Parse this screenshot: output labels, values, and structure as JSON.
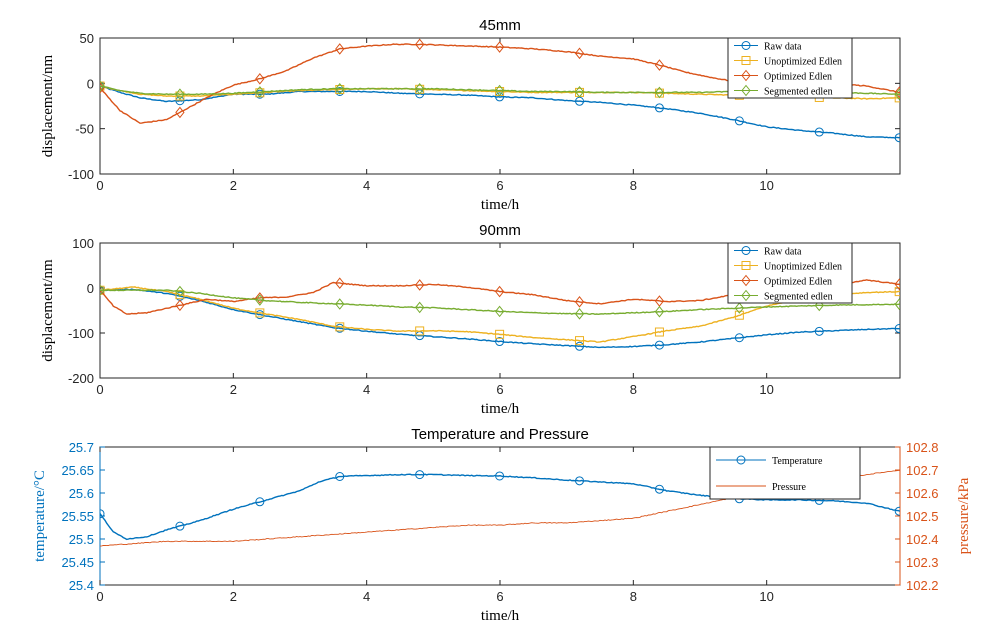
{
  "chart_data": [
    {
      "type": "line",
      "title": "45mm",
      "xlabel": "time/h",
      "ylabel": "displacement/nm",
      "xlim": [
        0,
        12
      ],
      "ylim": [
        -100,
        50
      ],
      "xticks": [
        0,
        2,
        4,
        6,
        8,
        10
      ],
      "yticks": [
        -100,
        -50,
        0,
        50
      ],
      "grid": false,
      "legend_position": "top-right",
      "series": [
        {
          "name": "Raw data",
          "color": "#0072BD",
          "marker": "circle",
          "x": [
            0,
            0.3,
            0.6,
            1,
            1.5,
            2,
            2.5,
            3,
            3.5,
            4,
            4.5,
            5,
            5.5,
            6,
            6.5,
            7,
            7.5,
            8,
            8.5,
            9,
            9.5,
            10,
            10.5,
            11,
            11.5,
            12
          ],
          "y": [
            -3,
            -10,
            -16,
            -20,
            -18,
            -12,
            -12,
            -9,
            -9,
            -9,
            -11,
            -12,
            -13,
            -15,
            -16,
            -19,
            -21,
            -24,
            -28,
            -33,
            -40,
            -48,
            -52,
            -55,
            -59,
            -60
          ]
        },
        {
          "name": "Unoptimized Edlen",
          "color": "#EDB120",
          "marker": "square",
          "x": [
            0,
            0.3,
            0.6,
            1,
            1.5,
            2,
            2.5,
            3,
            3.5,
            4,
            4.5,
            5,
            5.5,
            6,
            6.5,
            7,
            7.5,
            8,
            8.5,
            9,
            9.5,
            10,
            10.5,
            11,
            11.5,
            12
          ],
          "y": [
            -3,
            -8,
            -12,
            -14,
            -14,
            -12,
            -10,
            -8,
            -7,
            -6,
            -6,
            -7,
            -8,
            -9,
            -10,
            -10,
            -10,
            -10,
            -11,
            -12,
            -13,
            -14,
            -15,
            -16,
            -17,
            -16
          ]
        },
        {
          "name": "Optimized Edlen",
          "color": "#D95319",
          "marker": "diamond",
          "x": [
            0,
            0.3,
            0.6,
            1,
            1.3,
            1.7,
            2,
            2.4,
            2.8,
            3.2,
            3.6,
            4,
            4.4,
            4.8,
            5.2,
            5.6,
            6,
            6.5,
            7,
            7.5,
            8,
            8.4,
            8.8,
            9.2,
            9.6,
            10,
            10.5,
            11,
            11.5,
            12
          ],
          "y": [
            -5,
            -30,
            -44,
            -40,
            -28,
            -12,
            -2,
            5,
            14,
            28,
            38,
            41,
            43,
            43,
            42,
            41,
            40,
            38,
            35,
            30,
            27,
            20,
            12,
            6,
            1,
            2,
            1,
            0,
            -3,
            -10
          ]
        },
        {
          "name": "Segmented edlen",
          "color": "#77AC30",
          "marker": "diamond",
          "x": [
            0,
            0.3,
            0.6,
            1,
            1.5,
            2,
            2.5,
            3,
            3.5,
            4,
            4.5,
            5,
            5.5,
            6,
            6.5,
            7,
            7.5,
            8,
            8.5,
            9,
            9.5,
            10,
            10.5,
            11,
            11.5,
            12
          ],
          "y": [
            -3,
            -8,
            -11,
            -12,
            -12,
            -11,
            -9,
            -7,
            -6,
            -6,
            -6,
            -6,
            -7,
            -8,
            -9,
            -9,
            -10,
            -10,
            -10,
            -10,
            -9,
            -9,
            -10,
            -10,
            -11,
            -12
          ]
        }
      ]
    },
    {
      "type": "line",
      "title": "90mm",
      "xlabel": "time/h",
      "ylabel": "displacement/nm",
      "xlim": [
        0,
        12
      ],
      "ylim": [
        -200,
        100
      ],
      "xticks": [
        0,
        2,
        4,
        6,
        8,
        10
      ],
      "yticks": [
        -200,
        -100,
        0,
        100
      ],
      "grid": false,
      "legend_position": "top-right",
      "series": [
        {
          "name": "Raw data",
          "color": "#0072BD",
          "marker": "circle",
          "x": [
            0,
            0.5,
            1,
            1.5,
            2,
            2.5,
            3,
            3.5,
            4,
            4.5,
            5,
            5.5,
            6,
            6.5,
            7,
            7.5,
            8,
            8.5,
            9,
            9.5,
            10,
            10.5,
            11,
            11.5,
            12
          ],
          "y": [
            -5,
            -3,
            -12,
            -28,
            -48,
            -62,
            -75,
            -88,
            -96,
            -103,
            -108,
            -113,
            -119,
            -124,
            -128,
            -132,
            -130,
            -126,
            -120,
            -112,
            -104,
            -98,
            -95,
            -92,
            -90
          ]
        },
        {
          "name": "Unoptimized Edlen",
          "color": "#EDB120",
          "marker": "square",
          "x": [
            0,
            0.5,
            1,
            1.5,
            2,
            2.5,
            3,
            3.5,
            4,
            4.5,
            5,
            5.5,
            6,
            6.5,
            7,
            7.5,
            8,
            8.5,
            9,
            9.5,
            10,
            10.5,
            11,
            11.5,
            12
          ],
          "y": [
            -5,
            2,
            -8,
            -25,
            -45,
            -58,
            -70,
            -85,
            -92,
            -96,
            -95,
            -97,
            -103,
            -110,
            -115,
            -120,
            -108,
            -95,
            -85,
            -65,
            -40,
            -25,
            -15,
            -10,
            -8
          ]
        },
        {
          "name": "Optimized Edlen",
          "color": "#D95319",
          "marker": "diamond",
          "x": [
            0,
            0.2,
            0.4,
            0.7,
            1,
            1.3,
            1.6,
            2,
            2.4,
            2.8,
            3.2,
            3.5,
            4,
            4.5,
            5,
            5.5,
            6,
            6.5,
            7,
            7.5,
            8,
            8.5,
            9,
            9.5,
            10,
            10.5,
            11,
            11.5,
            12
          ],
          "y": [
            -5,
            -40,
            -58,
            -55,
            -45,
            -35,
            -25,
            -30,
            -22,
            -20,
            -10,
            12,
            5,
            5,
            8,
            2,
            -8,
            -15,
            -28,
            -35,
            -25,
            -30,
            -28,
            -15,
            -12,
            -5,
            5,
            18,
            8
          ]
        },
        {
          "name": "Segmented edlen",
          "color": "#77AC30",
          "marker": "diamond",
          "x": [
            0,
            0.5,
            1,
            1.5,
            2,
            2.5,
            3,
            3.5,
            4,
            4.5,
            5,
            5.5,
            6,
            6.5,
            7,
            7.5,
            8,
            8.5,
            9,
            9.5,
            10,
            10.5,
            11,
            11.5,
            12
          ],
          "y": [
            -5,
            -5,
            -5,
            -12,
            -22,
            -28,
            -32,
            -35,
            -38,
            -42,
            -44,
            -48,
            -52,
            -55,
            -57,
            -58,
            -55,
            -52,
            -48,
            -45,
            -42,
            -40,
            -38,
            -37,
            -36
          ]
        }
      ]
    },
    {
      "type": "line",
      "title": "Temperature and Pressure",
      "xlabel": "time/h",
      "ylabel": "temperature/°C",
      "ylabel_right": "pressure/kPa",
      "xlim": [
        0,
        12
      ],
      "ylim": [
        25.4,
        25.7
      ],
      "ylim_right": [
        102.2,
        102.8
      ],
      "xticks": [
        0,
        2,
        4,
        6,
        8,
        10
      ],
      "yticks": [
        25.4,
        25.45,
        25.5,
        25.55,
        25.6,
        25.65,
        25.7
      ],
      "yticks_right": [
        102.2,
        102.3,
        102.4,
        102.5,
        102.6,
        102.7,
        102.8
      ],
      "grid": false,
      "legend_position": "top-right",
      "series": [
        {
          "name": "Temperature",
          "axis": "left",
          "color": "#0072BD",
          "marker": "circle",
          "x": [
            0,
            0.2,
            0.4,
            0.7,
            1,
            1.5,
            2,
            2.5,
            3,
            3.3,
            3.6,
            4,
            4.5,
            5,
            5.5,
            6,
            6.5,
            7,
            7.5,
            8,
            8.5,
            9,
            9.5,
            10,
            10.5,
            11,
            11.5,
            12
          ],
          "y": [
            25.555,
            25.515,
            25.5,
            25.505,
            25.52,
            25.54,
            25.565,
            25.585,
            25.605,
            25.625,
            25.636,
            25.638,
            25.64,
            25.64,
            25.638,
            25.637,
            25.633,
            25.628,
            25.624,
            25.62,
            25.605,
            25.595,
            25.588,
            25.585,
            25.585,
            25.583,
            25.578,
            25.56
          ]
        },
        {
          "name": "Pressure",
          "axis": "right",
          "color": "#D95319",
          "marker": "none",
          "x": [
            0,
            0.5,
            1,
            1.5,
            2,
            2.5,
            3,
            3.5,
            4,
            4.5,
            5,
            5.5,
            6,
            6.5,
            7,
            7.5,
            8,
            8.5,
            9,
            9.5,
            10,
            10.5,
            11,
            11.5,
            12
          ],
          "y": [
            102.37,
            102.38,
            102.39,
            102.39,
            102.39,
            102.4,
            102.41,
            102.42,
            102.43,
            102.44,
            102.45,
            102.46,
            102.46,
            102.47,
            102.47,
            102.48,
            102.49,
            102.52,
            102.55,
            102.58,
            102.61,
            102.64,
            102.66,
            102.68,
            102.7
          ]
        }
      ]
    }
  ]
}
